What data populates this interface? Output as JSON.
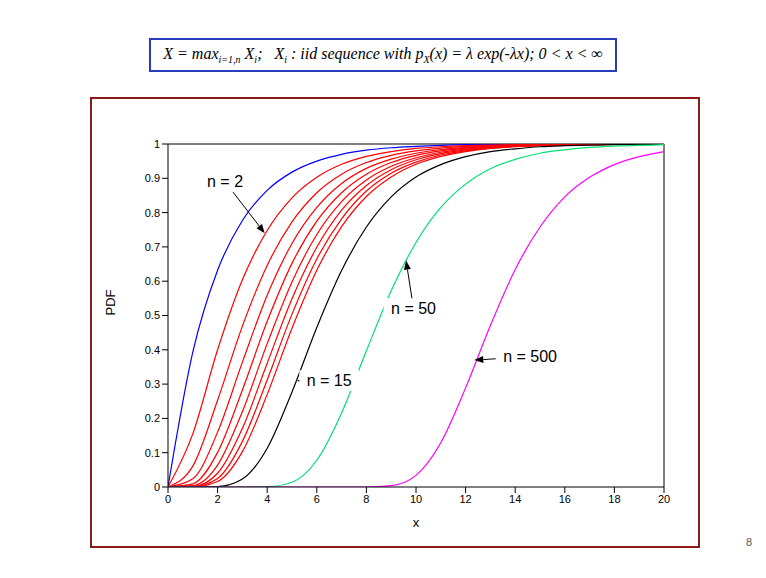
{
  "header": {
    "parts": [
      {
        "t": "X = max"
      },
      {
        "sub": "i=1,n"
      },
      {
        "t": " X"
      },
      {
        "sub": "i"
      },
      {
        "t": ";   X"
      },
      {
        "sub": "i"
      },
      {
        "t": " : iid sequence with p"
      },
      {
        "sub": "X"
      },
      {
        "t": "(x) = λ exp(-λx); 0 < x < ∞"
      }
    ]
  },
  "page": "8",
  "chart_data": {
    "type": "line",
    "x_label": "x",
    "y_label": "PDF",
    "xlim": [
      0,
      20
    ],
    "xticks": [
      0,
      2,
      4,
      6,
      8,
      10,
      12,
      14,
      16,
      18,
      20
    ],
    "ylim": [
      0,
      1
    ],
    "yticks": [
      0,
      0.1,
      0.2,
      0.3,
      0.4,
      0.5,
      0.6,
      0.7,
      0.8,
      0.9,
      1
    ],
    "grid": false,
    "x": [
      0,
      1,
      2,
      3,
      4,
      5,
      6,
      7,
      8,
      9,
      10,
      11,
      12,
      13,
      14,
      15,
      16,
      17,
      18,
      19,
      20
    ],
    "series": [
      {
        "color": "#0000ff",
        "values": [
          0,
          0.393,
          0.632,
          0.777,
          0.865,
          0.918,
          0.95,
          0.97,
          0.982,
          0.989,
          0.993,
          0.996,
          0.998,
          0.998,
          0.999,
          0.999,
          1,
          1,
          1,
          1,
          1
        ]
      },
      {
        "color": "#ff0000",
        "values": [
          0,
          0.155,
          0.4,
          0.604,
          0.748,
          0.843,
          0.903,
          0.941,
          0.964,
          0.978,
          0.987,
          0.992,
          0.995,
          0.997,
          0.998,
          0.999,
          0.999,
          1,
          1,
          1,
          1
        ]
      },
      {
        "color": "#ff0000",
        "values": [
          0,
          0.061,
          0.253,
          0.469,
          0.646,
          0.773,
          0.858,
          0.912,
          0.946,
          0.967,
          0.98,
          0.988,
          0.993,
          0.995,
          0.997,
          0.998,
          0.999,
          0.999,
          1,
          1,
          1
        ]
      },
      {
        "color": "#ff0000",
        "values": [
          0,
          0.024,
          0.16,
          0.364,
          0.559,
          0.71,
          0.815,
          0.885,
          0.929,
          0.956,
          0.973,
          0.984,
          0.99,
          0.994,
          0.996,
          0.998,
          0.999,
          0.999,
          1,
          1,
          1
        ]
      },
      {
        "color": "#ff0000",
        "values": [
          0,
          0.009,
          0.101,
          0.283,
          0.483,
          0.652,
          0.775,
          0.858,
          0.912,
          0.946,
          0.967,
          0.98,
          0.988,
          0.993,
          0.995,
          0.997,
          0.998,
          0.999,
          0.999,
          1,
          1
        ]
      },
      {
        "color": "#ff0000",
        "values": [
          0,
          0.004,
          0.064,
          0.22,
          0.418,
          0.598,
          0.736,
          0.832,
          0.895,
          0.935,
          0.96,
          0.976,
          0.985,
          0.991,
          0.995,
          0.997,
          0.998,
          0.999,
          0.999,
          1,
          1
        ]
      },
      {
        "color": "#ff0000",
        "values": [
          0,
          0.001,
          0.04,
          0.171,
          0.361,
          0.549,
          0.699,
          0.807,
          0.879,
          0.925,
          0.954,
          0.972,
          0.983,
          0.99,
          0.994,
          0.996,
          0.998,
          0.999,
          0.999,
          0.999,
          1
        ]
      },
      {
        "color": "#ff0000",
        "values": [
          0,
          0.001,
          0.025,
          0.133,
          0.312,
          0.504,
          0.665,
          0.782,
          0.863,
          0.915,
          0.947,
          0.968,
          0.98,
          0.988,
          0.993,
          0.996,
          0.997,
          0.998,
          0.999,
          0.999,
          1
        ]
      },
      {
        "color": "#ff0000",
        "values": [
          0,
          0,
          0.016,
          0.103,
          0.27,
          0.463,
          0.632,
          0.759,
          0.847,
          0.904,
          0.941,
          0.964,
          0.978,
          0.987,
          0.992,
          0.995,
          0.997,
          0.998,
          0.999,
          0.999,
          1
        ]
      },
      {
        "color": "#000000",
        "values": [
          0,
          0,
          0.001,
          0.023,
          0.113,
          0.277,
          0.465,
          0.631,
          0.758,
          0.846,
          0.904,
          0.94,
          0.963,
          0.978,
          0.986,
          0.992,
          0.995,
          0.997,
          0.998,
          0.999,
          0.999
        ]
      },
      {
        "color": "#00e070",
        "values": [
          0,
          0,
          0,
          0,
          0.001,
          0.014,
          0.078,
          0.216,
          0.397,
          0.572,
          0.713,
          0.815,
          0.883,
          0.928,
          0.955,
          0.973,
          0.983,
          0.99,
          0.994,
          0.996,
          0.998
        ]
      },
      {
        "color": "#ff00ff",
        "values": [
          0,
          0,
          0,
          0,
          0,
          0,
          0,
          0,
          0,
          0.004,
          0.034,
          0.129,
          0.289,
          0.471,
          0.634,
          0.758,
          0.846,
          0.903,
          0.94,
          0.963,
          0.978
        ]
      }
    ],
    "annotations": [
      {
        "text": "n = 2",
        "x": 2.3,
        "y": 0.89,
        "arrow_to": [
          3.9,
          0.74
        ]
      },
      {
        "text": "n = 15",
        "x": 6.5,
        "y": 0.31,
        "arrow_to": [
          5.2,
          0.31
        ]
      },
      {
        "text": "n = 50",
        "x": 9.9,
        "y": 0.52,
        "arrow_to": [
          9.6,
          0.66
        ]
      },
      {
        "text": "n = 500",
        "x": 14.6,
        "y": 0.38,
        "arrow_to": [
          12.35,
          0.37
        ]
      }
    ]
  }
}
